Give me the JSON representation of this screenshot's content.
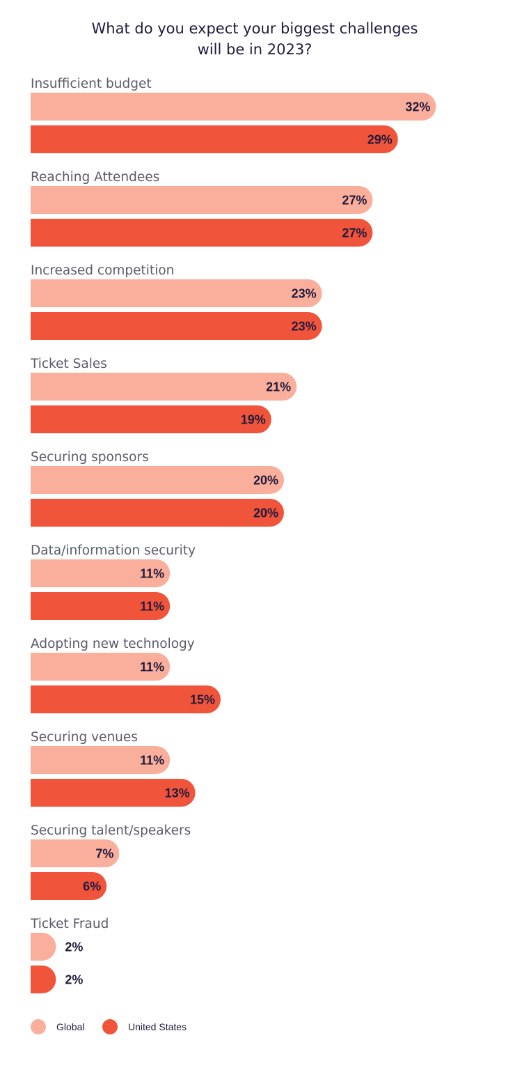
{
  "chart_data": {
    "type": "bar",
    "orientation": "horizontal",
    "title_lines": [
      "What do you expect your biggest challenges",
      "will be in 2023?"
    ],
    "categories": [
      "Insufficient budget",
      "Reaching Attendees",
      "Increased competition",
      "Ticket Sales",
      "Securing sponsors",
      "Data/information security",
      "Adopting new technology",
      "Securing venues",
      "Securing talent/speakers",
      "Ticket Fraud"
    ],
    "series": [
      {
        "name": "Global",
        "color": "#f9af9c",
        "values": [
          32,
          27,
          23,
          21,
          20,
          11,
          11,
          11,
          7,
          2
        ],
        "labels": [
          "32%",
          "27%",
          "23%",
          "21%",
          "20%",
          "11%",
          "11%",
          "11%",
          "7%",
          "2%"
        ]
      },
      {
        "name": "United States",
        "color": "#f0553b",
        "values": [
          29,
          27,
          23,
          19,
          20,
          11,
          15,
          13,
          6,
          2
        ],
        "labels": [
          "29%",
          "27%",
          "23%",
          "19%",
          "20%",
          "11%",
          "15%",
          "13%",
          "6%",
          "2%"
        ]
      }
    ],
    "legend_position": "bottom-left",
    "grid": false,
    "value_unit": "%"
  }
}
